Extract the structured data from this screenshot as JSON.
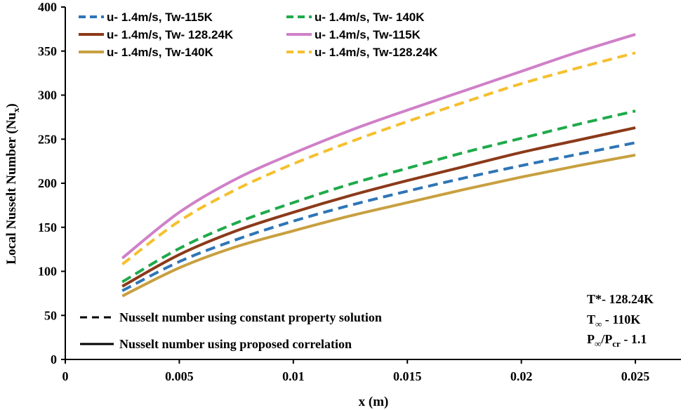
{
  "chart_data": {
    "type": "line",
    "title": "",
    "xlabel": "x (m)",
    "ylabel": "Local Nusselt Number (Nu",
    "ylabel_sub": "x",
    "ylabel_close": ")",
    "xlim": [
      0,
      0.027
    ],
    "ylim": [
      0,
      400
    ],
    "xticks": [
      0,
      0.005,
      0.01,
      0.015,
      0.02,
      0.025
    ],
    "xtick_labels": [
      "0",
      "0.005",
      "0.01",
      "0.015",
      "0.02",
      "0.025"
    ],
    "yticks": [
      0,
      50,
      100,
      150,
      200,
      250,
      300,
      350,
      400
    ],
    "ytick_labels": [
      "0",
      "50",
      "100",
      "150",
      "200",
      "250",
      "300",
      "350",
      "400"
    ],
    "grid": false,
    "x": [
      0.0025,
      0.005,
      0.0075,
      0.01,
      0.0125,
      0.015,
      0.0175,
      0.02,
      0.0225,
      0.025
    ],
    "series": [
      {
        "name": "u- 1.4m/s, Tw-115K",
        "style": "dashed",
        "color": "#2e75b6",
        "values": [
          78,
          111,
          136,
          157,
          175,
          191,
          206,
          220,
          233,
          246
        ]
      },
      {
        "name": "u- 1.4m/s, Tw- 140K",
        "style": "dashed",
        "color": "#1faa4b",
        "values": [
          88,
          126,
          155,
          178,
          199,
          217,
          235,
          251,
          267,
          282
        ]
      },
      {
        "name": "u- 1.4m/s, Tw- 128.24K",
        "style": "solid",
        "color": "#8b3a1a",
        "values": [
          83,
          119,
          146,
          167,
          186,
          203,
          219,
          235,
          249,
          263
        ]
      },
      {
        "name": "u- 1.4m/s, Tw-115K",
        "style": "solid",
        "color": "#d080c8",
        "values": [
          115,
          167,
          205,
          234,
          260,
          283,
          305,
          327,
          349,
          369
        ]
      },
      {
        "name": "u- 1.4m/s, Tw-140K",
        "style": "solid",
        "color": "#c8a040",
        "values": [
          72,
          104,
          128,
          146,
          163,
          178,
          193,
          207,
          220,
          232
        ]
      },
      {
        "name": "u- 1.4m/s, Tw-128.24K",
        "style": "dashed",
        "color": "#f5c02e",
        "values": [
          108,
          157,
          193,
          222,
          247,
          270,
          292,
          313,
          331,
          348
        ]
      }
    ],
    "line_style_legend": [
      {
        "style": "dashed",
        "label": "Nusselt number using constant property solution"
      },
      {
        "style": "solid",
        "label": "Nusselt number using proposed correlation"
      }
    ],
    "annotations": {
      "tstar_prefix": "T*- 128.24K",
      "tinf_base": "T",
      "tinf_sub": "∞",
      "tinf_value": " - 110K",
      "ratio_p1": "P",
      "ratio_sub1": "∞",
      "ratio_slash": "/P",
      "ratio_sub2": "cr",
      "ratio_value": " - 1.1"
    }
  }
}
